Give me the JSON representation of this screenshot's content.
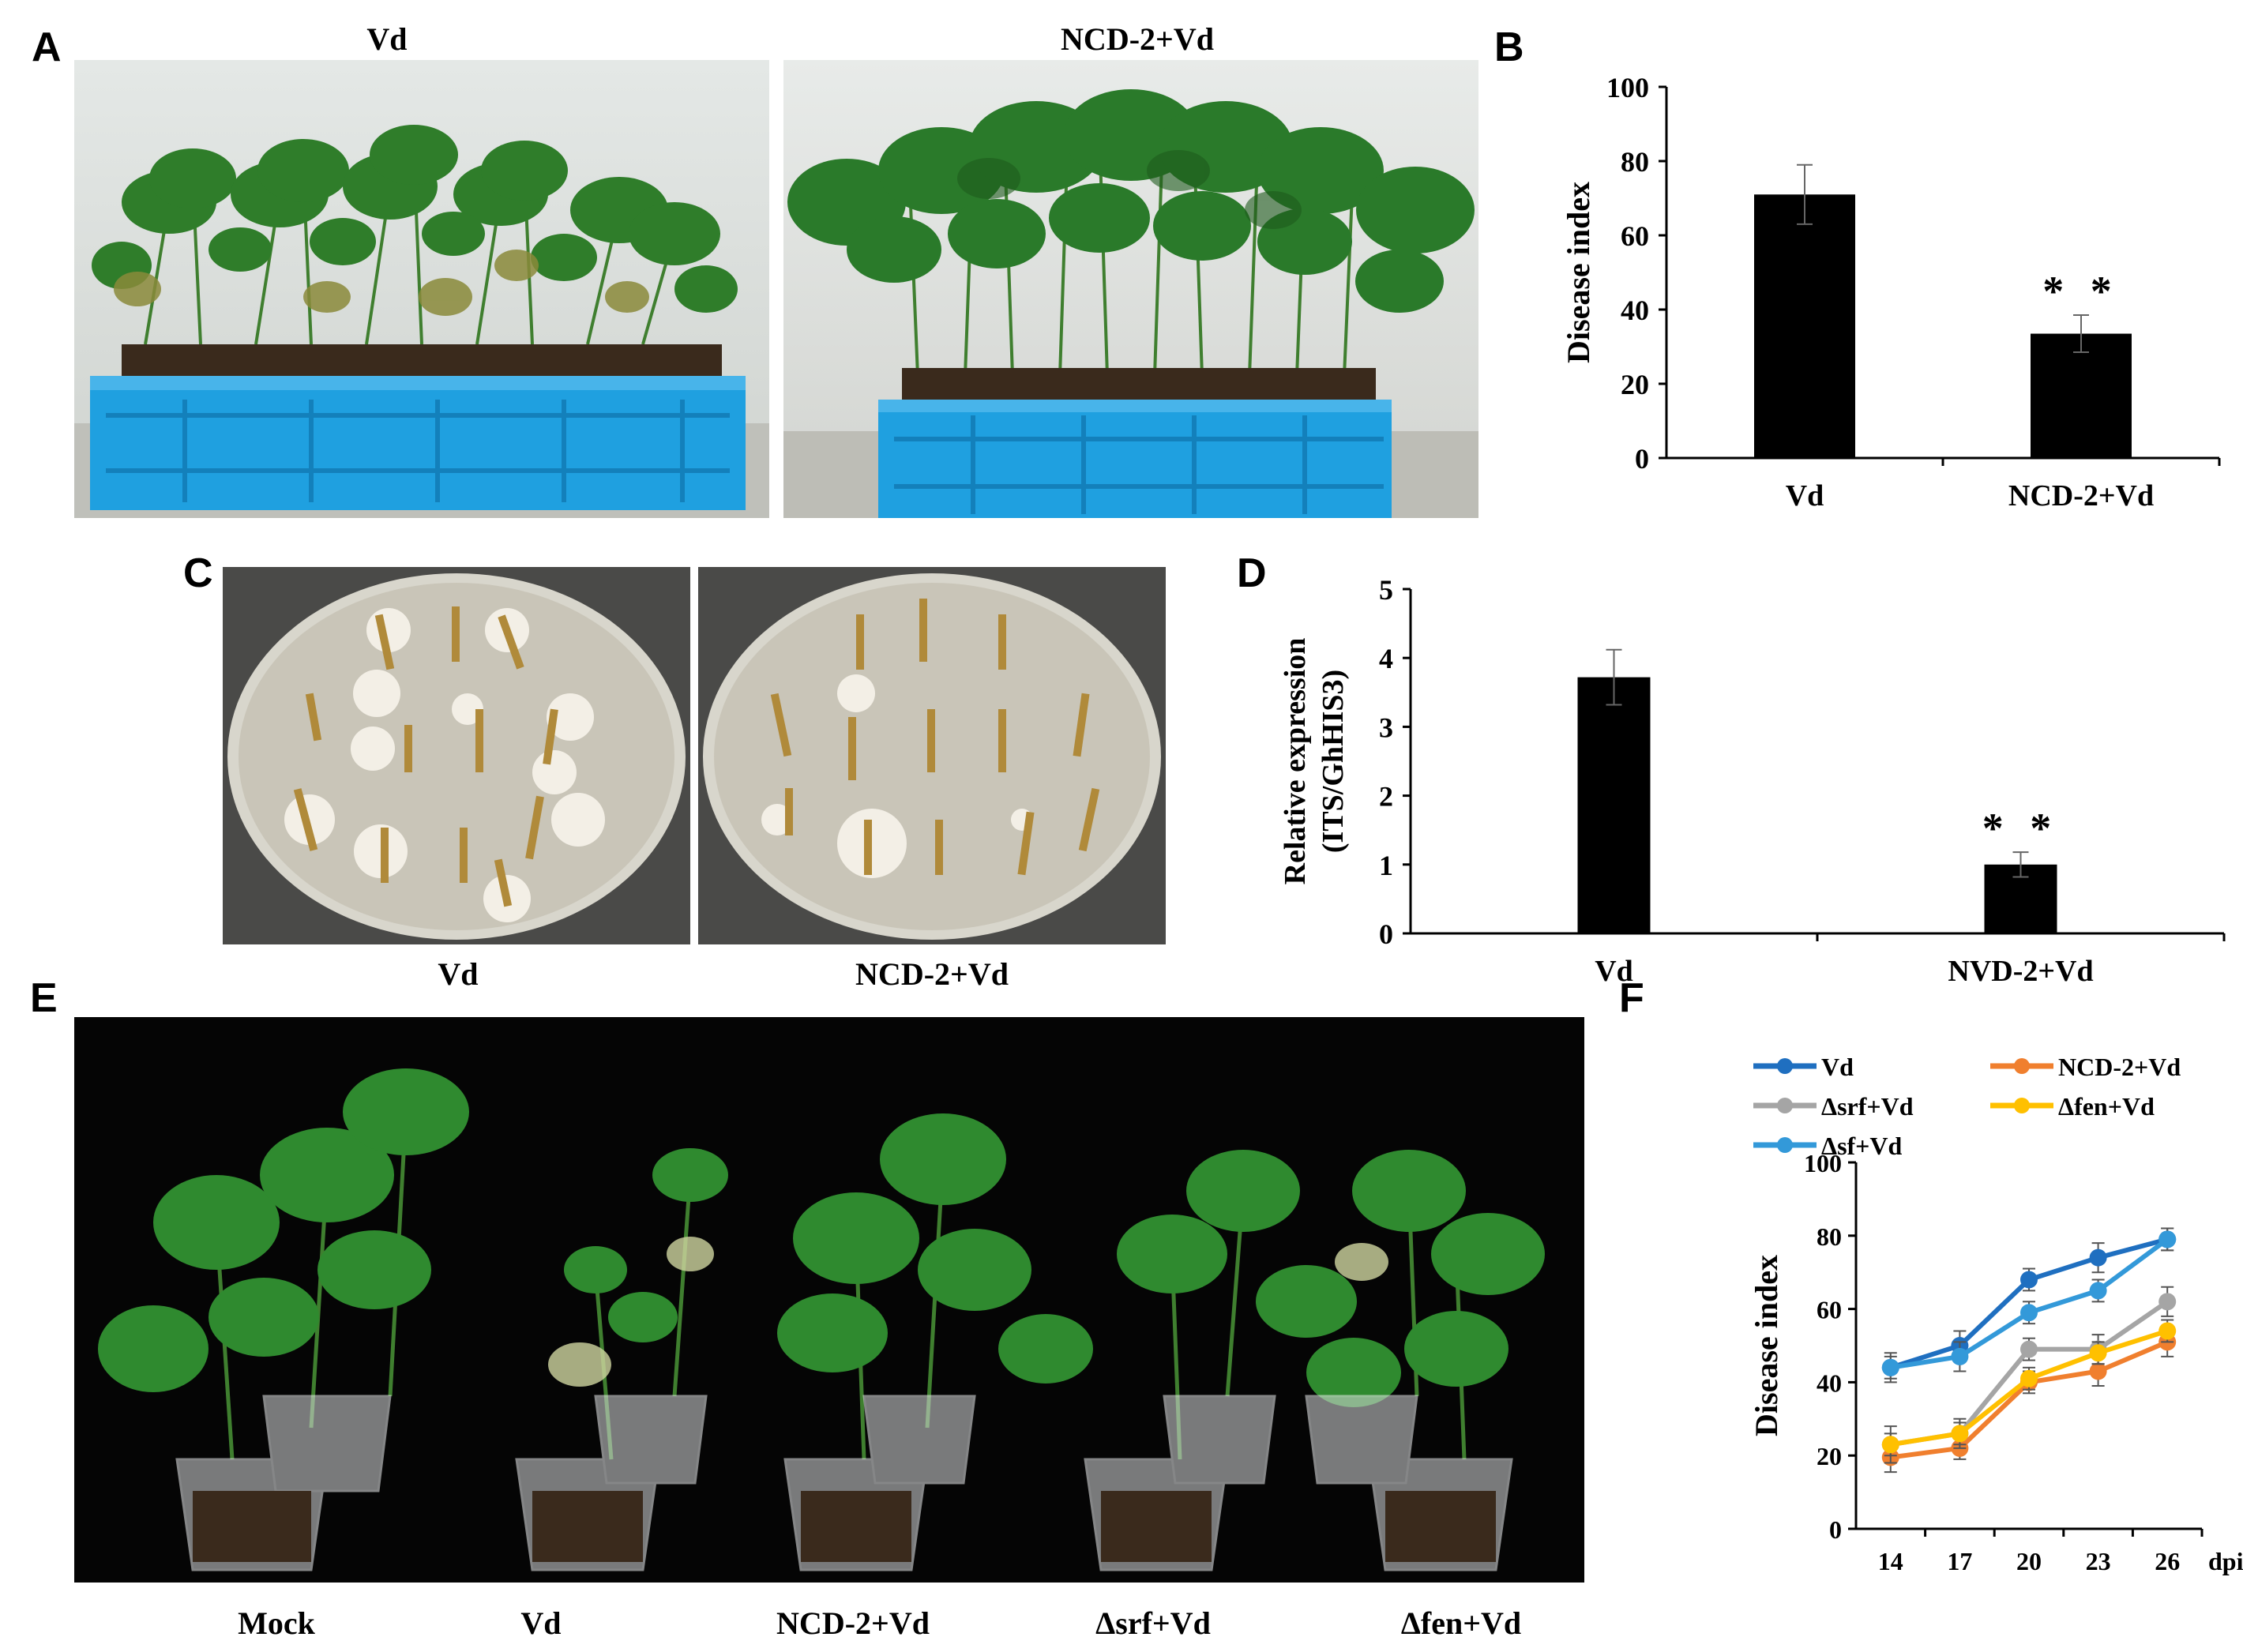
{
  "figure": {
    "panels": {
      "A": {
        "letter": "A",
        "captions": [
          "Vd",
          "NCD-2+Vd"
        ]
      },
      "B": {
        "letter": "B"
      },
      "C": {
        "letter": "C",
        "captions": [
          "Vd",
          "NCD-2+Vd"
        ]
      },
      "D": {
        "letter": "D"
      },
      "E": {
        "letter": "E",
        "captions": [
          "Mock",
          "Vd",
          "NCD-2+Vd",
          "Δsrf+Vd",
          "Δfen+Vd"
        ]
      },
      "F": {
        "letter": "F"
      }
    },
    "colors": {
      "bar": "#000000",
      "leaf": "#2f7d2a",
      "leaf_dark": "#1e5a1c",
      "crate": "#1fa0e0",
      "soil": "#3a2a1c",
      "agar": "#c9c5b8",
      "plate_bg": "#4a4a48"
    },
    "photo_notes": {
      "A_left": "cotton-seedlings-blue-crate",
      "A_right": "cotton-seedlings-blue-crate",
      "C_left": "petri-dish-stem-segments",
      "C_right": "petri-dish-stem-segments",
      "E": "potted-cotton-plants-black-background"
    }
  },
  "chart_data": [
    {
      "id": "B",
      "type": "bar",
      "categories": [
        "Vd",
        "NCD-2+Vd"
      ],
      "values": [
        71,
        33.5
      ],
      "errors": [
        8,
        5
      ],
      "annotations": [
        "",
        "**"
      ],
      "title": "",
      "xlabel": "",
      "ylabel": "Disease index",
      "ylim": [
        0,
        100
      ],
      "yticks": [
        0,
        20,
        40,
        60,
        80,
        100
      ]
    },
    {
      "id": "D",
      "type": "bar",
      "categories": [
        "Vd",
        "NVD-2+Vd"
      ],
      "values": [
        3.72,
        1.0
      ],
      "errors": [
        0.4,
        0.18
      ],
      "annotations": [
        "",
        "**"
      ],
      "title": "",
      "xlabel": "",
      "ylabel_lines": [
        "Relative expression",
        "(ITS/GhHIS3)"
      ],
      "ylim": [
        0,
        5
      ],
      "yticks": [
        0,
        1,
        2,
        3,
        4,
        5
      ]
    },
    {
      "id": "F",
      "type": "line",
      "x": [
        14,
        17,
        20,
        23,
        26
      ],
      "xunit": "dpi",
      "ylabel": "Disease index",
      "ylim": [
        0,
        100
      ],
      "yticks": [
        0,
        20,
        40,
        60,
        80,
        100
      ],
      "legend_placement": "top",
      "series": [
        {
          "name": "Vd",
          "color": "#1f6fc0",
          "values": [
            44,
            50,
            68,
            74,
            79
          ],
          "errors": [
            4,
            4,
            3,
            4,
            3
          ]
        },
        {
          "name": "NCD-2+Vd",
          "color": "#f07f2e",
          "values": [
            19.5,
            22,
            40,
            43,
            51
          ],
          "errors": [
            4,
            3,
            3,
            4,
            4
          ]
        },
        {
          "name": "Δsrf+Vd",
          "color": "#a5a5a5",
          "values": [
            23,
            26,
            49,
            49,
            62
          ],
          "errors": [
            5,
            4,
            3,
            4,
            4
          ]
        },
        {
          "name": "Δfen+Vd",
          "color": "#ffc000",
          "values": [
            23,
            26,
            41,
            48,
            54
          ],
          "errors": [
            3,
            3,
            3,
            3,
            3
          ]
        },
        {
          "name": "Δsf+Vd",
          "color": "#3399d9",
          "values": [
            44,
            47,
            59,
            65,
            79
          ],
          "errors": [
            3,
            4,
            3,
            3,
            3
          ]
        }
      ]
    }
  ]
}
